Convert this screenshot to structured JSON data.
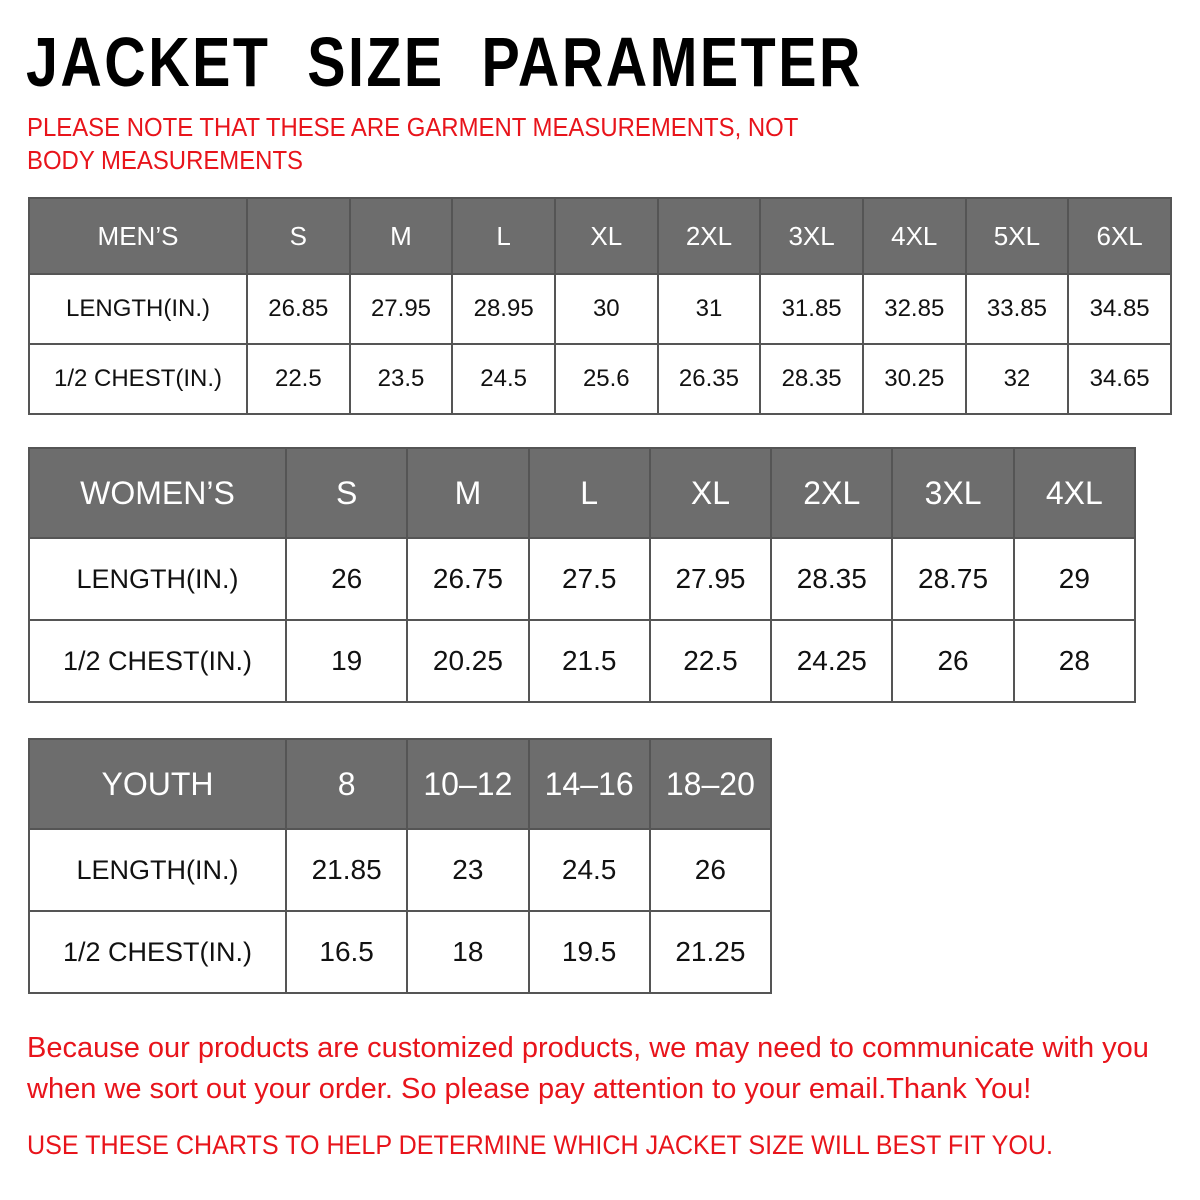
{
  "title": "JACKET  SIZE  PARAMETER",
  "note": "PLEASE NOTE THAT THESE ARE GARMENT MEASUREMENTS, NOT BODY MEASUREMENTS",
  "colors": {
    "header_bg": "#6d6d6d",
    "accent_red": "#e8141b"
  },
  "tables": [
    {
      "name": "men",
      "header": [
        "MEN’S",
        "S",
        "M",
        "L",
        "XL",
        "2XL",
        "3XL",
        "4XL",
        "5XL",
        "6XL"
      ],
      "rows": [
        [
          "LENGTH(IN.)",
          "26.85",
          "27.95",
          "28.95",
          "30",
          "31",
          "31.85",
          "32.85",
          "33.85",
          "34.85"
        ],
        [
          "1/2 CHEST(IN.)",
          "22.5",
          "23.5",
          "24.5",
          "25.6",
          "26.35",
          "28.35",
          "30.25",
          "32",
          "34.65"
        ]
      ]
    },
    {
      "name": "women",
      "header": [
        "WOMEN’S",
        "S",
        "M",
        "L",
        "XL",
        "2XL",
        "3XL",
        "4XL"
      ],
      "rows": [
        [
          "LENGTH(IN.)",
          "26",
          "26.75",
          "27.5",
          "27.95",
          "28.35",
          "28.75",
          "29"
        ],
        [
          "1/2 CHEST(IN.)",
          "19",
          "20.25",
          "21.5",
          "22.5",
          "24.25",
          "26",
          "28"
        ]
      ]
    },
    {
      "name": "youth",
      "header": [
        "YOUTH",
        "8",
        "10–12",
        "14–16",
        "18–20"
      ],
      "rows": [
        [
          "LENGTH(IN.)",
          "21.85",
          "23",
          "24.5",
          "26"
        ],
        [
          "1/2 CHEST(IN.)",
          "16.5",
          "18",
          "19.5",
          "21.25"
        ]
      ]
    }
  ],
  "footer": {
    "message": "Because our products are customized products, we may need to communicate with you when we sort out your order. So please pay attention to your email.Thank You!",
    "instruction": "USE THESE CHARTS TO HELP DETERMINE WHICH JACKET SIZE WILL BEST FIT YOU."
  }
}
